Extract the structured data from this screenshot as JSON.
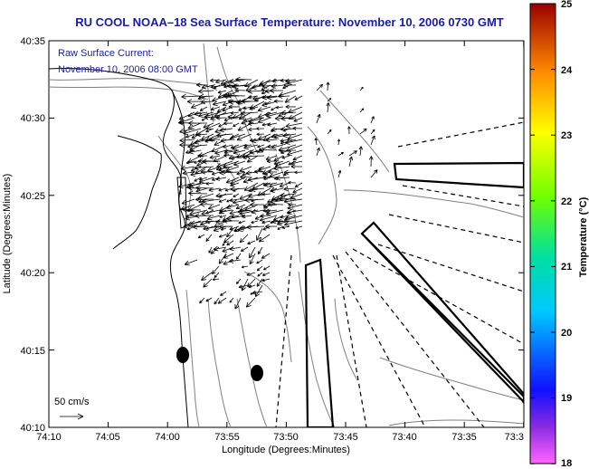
{
  "header": {
    "title": "RU COOL  NOAA–18  Sea Surface Temperature:  November 10, 2006 0730 GMT"
  },
  "overlay": {
    "line1": "Raw Surface Current:",
    "line2": "November 10, 2006 08:00 GMT",
    "scale_label": "50 cm/s"
  },
  "axes": {
    "xlabel": "Longitude (Degrees:Minutes)",
    "ylabel": "Latitude (Degrees:Minutes)",
    "x_ticks": [
      "74:10",
      "74:05",
      "74:00",
      "73:55",
      "73:50",
      "73:45",
      "73:40",
      "73:35",
      "73:3"
    ],
    "y_ticks": [
      "40:35",
      "40:30",
      "40:25",
      "40:20",
      "40:15",
      "40:10"
    ]
  },
  "colorbar": {
    "label": "Temperature (°C)",
    "ticks": [
      "25",
      "24",
      "23",
      "22",
      "21",
      "20",
      "19",
      "18"
    ],
    "min": 18,
    "max": 25
  },
  "colors": {
    "title": "#1a1aa6",
    "contour": "#808080",
    "coast": "#000000"
  }
}
